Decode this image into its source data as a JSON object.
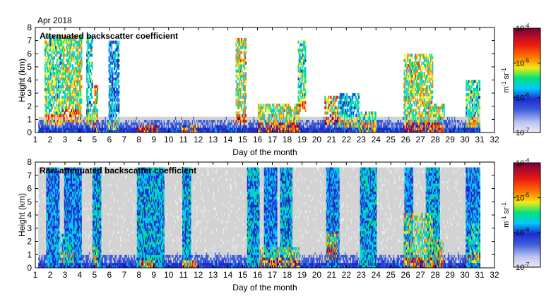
{
  "header": {
    "date_label": "Apr 2018"
  },
  "colors": {
    "colormap": [
      "#ececf6",
      "#d3d3d3",
      "#3b5bdb",
      "#1d2ccf",
      "#00c9ff",
      "#00e37a",
      "#f0ea12",
      "#ff7a00",
      "#ee1a12",
      "#7a003a"
    ],
    "axis": "#000000",
    "clear_sky": "#ffffff"
  },
  "chart_data": [
    {
      "type": "heatmap",
      "title": "Attenuated backscatter coefficient",
      "xlabel": "Day of the month",
      "ylabel": "Height (km)",
      "xlim": [
        1,
        32
      ],
      "ylim": [
        0,
        8
      ],
      "xticks": [
        "1",
        "2",
        "3",
        "4",
        "5",
        "6",
        "7",
        "8",
        "9",
        "10",
        "11",
        "12",
        "13",
        "14",
        "15",
        "16",
        "17",
        "18",
        "19",
        "20",
        "21",
        "22",
        "23",
        "24",
        "25",
        "26",
        "27",
        "28",
        "29",
        "30",
        "31",
        "32"
      ],
      "yticks": [
        "0",
        "1",
        "2",
        "3",
        "4",
        "5",
        "6",
        "7",
        "8"
      ],
      "grid": false,
      "colorbar": {
        "label": "m-1 sr-1",
        "scale": "log",
        "range": [
          1e-07,
          0.0001
        ],
        "ticks": [
          "10-7",
          "10-6",
          "10-5",
          "10-4"
        ]
      },
      "data_extent_days": [
        1.2,
        31
      ],
      "cloud_events": [
        {
          "start": 1.6,
          "end": 2.8,
          "base_km": 0.6,
          "top_km": 7.3,
          "intensity": 0.75
        },
        {
          "start": 2.8,
          "end": 4.1,
          "base_km": 0.8,
          "top_km": 7.3,
          "intensity": 0.8
        },
        {
          "start": 4.4,
          "end": 4.8,
          "base_km": 0.5,
          "top_km": 7.3,
          "intensity": 0.65
        },
        {
          "start": 4.9,
          "end": 5.2,
          "base_km": 0.0,
          "top_km": 3.5,
          "intensity": 0.9
        },
        {
          "start": 5.9,
          "end": 6.6,
          "base_km": 0.2,
          "top_km": 7.0,
          "intensity": 0.55
        },
        {
          "start": 7.8,
          "end": 9.2,
          "base_km": 0.0,
          "top_km": 0.6,
          "intensity": 0.9
        },
        {
          "start": 10.8,
          "end": 12.0,
          "base_km": 0.0,
          "top_km": 0.5,
          "intensity": 0.8
        },
        {
          "start": 14.5,
          "end": 15.2,
          "base_km": 0.5,
          "top_km": 7.2,
          "intensity": 0.85
        },
        {
          "start": 16.0,
          "end": 18.8,
          "base_km": 0.0,
          "top_km": 2.0,
          "intensity": 0.85
        },
        {
          "start": 18.7,
          "end": 19.2,
          "base_km": 1.5,
          "top_km": 7.0,
          "intensity": 0.7
        },
        {
          "start": 20.5,
          "end": 21.4,
          "base_km": 0.5,
          "top_km": 2.8,
          "intensity": 0.95
        },
        {
          "start": 21.4,
          "end": 22.8,
          "base_km": 0.3,
          "top_km": 3.0,
          "intensity": 0.6
        },
        {
          "start": 22.8,
          "end": 24.0,
          "base_km": 0.0,
          "top_km": 1.5,
          "intensity": 0.7
        },
        {
          "start": 25.8,
          "end": 27.8,
          "base_km": 0.0,
          "top_km": 6.0,
          "intensity": 0.85
        },
        {
          "start": 27.8,
          "end": 28.6,
          "base_km": 0.0,
          "top_km": 2.0,
          "intensity": 0.85
        },
        {
          "start": 30.0,
          "end": 31.0,
          "base_km": 0.3,
          "top_km": 4.0,
          "intensity": 0.7
        }
      ]
    },
    {
      "type": "heatmap",
      "title": "Raw attenuated backscatter coefficient",
      "xlabel": "Day of the month",
      "ylabel": "Height (km)",
      "xlim": [
        1,
        32
      ],
      "ylim": [
        0,
        8
      ],
      "xticks": [
        "1",
        "2",
        "3",
        "4",
        "5",
        "6",
        "7",
        "8",
        "9",
        "10",
        "11",
        "12",
        "13",
        "14",
        "15",
        "16",
        "17",
        "18",
        "19",
        "20",
        "21",
        "22",
        "23",
        "24",
        "25",
        "26",
        "27",
        "28",
        "29",
        "30",
        "31",
        "32"
      ],
      "yticks": [
        "0",
        "1",
        "2",
        "3",
        "4",
        "5",
        "6",
        "7",
        "8"
      ],
      "grid": false,
      "colorbar": {
        "label": "m-1 sr-1",
        "scale": "log",
        "range": [
          1e-07,
          0.0001
        ],
        "ticks": [
          "10-7",
          "10-6",
          "10-5",
          "10-4"
        ]
      },
      "data_extent_days": [
        1.2,
        31
      ],
      "max_range_km": 7.6,
      "noise_bands": [
        {
          "start": 1.7,
          "end": 2.6,
          "level": 0.45
        },
        {
          "start": 2.9,
          "end": 4.1,
          "level": 0.45
        },
        {
          "start": 4.8,
          "end": 5.4,
          "level": 0.5
        },
        {
          "start": 7.8,
          "end": 9.7,
          "level": 0.5
        },
        {
          "start": 10.9,
          "end": 11.5,
          "level": 0.5
        },
        {
          "start": 15.3,
          "end": 16.1,
          "level": 0.5
        },
        {
          "start": 16.4,
          "end": 17.3,
          "level": 0.45
        },
        {
          "start": 17.5,
          "end": 18.3,
          "level": 0.5
        },
        {
          "start": 20.6,
          "end": 21.5,
          "level": 0.45
        },
        {
          "start": 22.9,
          "end": 24.0,
          "level": 0.5
        },
        {
          "start": 25.9,
          "end": 26.5,
          "level": 0.45
        },
        {
          "start": 27.3,
          "end": 28.3,
          "level": 0.5
        },
        {
          "start": 30.0,
          "end": 31.0,
          "level": 0.45
        }
      ],
      "cloud_events": [
        {
          "start": 2.6,
          "end": 3.6,
          "base_km": 0.3,
          "top_km": 2.5,
          "intensity": 0.6
        },
        {
          "start": 4.9,
          "end": 5.2,
          "base_km": 0.0,
          "top_km": 1.5,
          "intensity": 0.85
        },
        {
          "start": 8.0,
          "end": 9.0,
          "base_km": 0.0,
          "top_km": 0.4,
          "intensity": 0.85
        },
        {
          "start": 10.9,
          "end": 12.0,
          "base_km": 0.0,
          "top_km": 0.4,
          "intensity": 0.75
        },
        {
          "start": 16.1,
          "end": 18.8,
          "base_km": 0.0,
          "top_km": 1.5,
          "intensity": 0.8
        },
        {
          "start": 20.6,
          "end": 21.4,
          "base_km": 0.5,
          "top_km": 2.8,
          "intensity": 0.9
        },
        {
          "start": 25.8,
          "end": 27.8,
          "base_km": 0.0,
          "top_km": 4.2,
          "intensity": 0.8
        },
        {
          "start": 27.8,
          "end": 28.5,
          "base_km": 0.0,
          "top_km": 2.0,
          "intensity": 0.85
        },
        {
          "start": 30.1,
          "end": 31.0,
          "base_km": 0.3,
          "top_km": 3.5,
          "intensity": 0.65
        }
      ]
    }
  ]
}
